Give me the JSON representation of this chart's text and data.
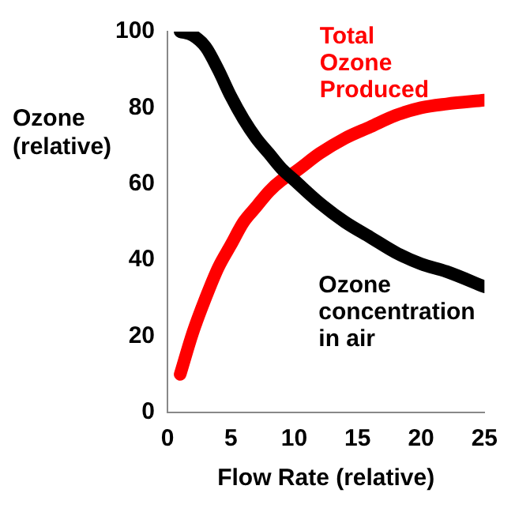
{
  "chart_data": {
    "type": "line",
    "xlabel": "Flow Rate (relative)",
    "ylabel": "Ozone (relative)",
    "xlim": [
      0,
      25
    ],
    "xticks": [
      0,
      5,
      10,
      15,
      20,
      25
    ],
    "ylim": [
      0,
      100
    ],
    "yticks": [
      0,
      20,
      40,
      60,
      80,
      100
    ],
    "grid": false,
    "legend": false,
    "marker": "none",
    "line_style": "solid",
    "series": [
      {
        "name": "Ozone concentration in air",
        "color": "#000000",
        "x": [
          1,
          2,
          3,
          4,
          5,
          6,
          7,
          8,
          9,
          10,
          12,
          14,
          16,
          18,
          20,
          22,
          25
        ],
        "values": [
          100,
          99,
          96,
          90,
          83,
          77,
          72,
          68,
          64,
          61,
          55,
          50,
          46,
          42,
          39,
          37,
          33
        ]
      },
      {
        "name": "Total Ozone Produced",
        "color": "#ff0000",
        "x": [
          1,
          2,
          3,
          4,
          5,
          6,
          7,
          8,
          9,
          10,
          12,
          14,
          16,
          18,
          20,
          22,
          25
        ],
        "values": [
          10,
          21,
          30,
          38,
          44,
          50,
          54,
          58,
          61,
          63,
          68,
          72,
          75,
          78,
          80,
          81,
          82
        ]
      }
    ]
  }
}
